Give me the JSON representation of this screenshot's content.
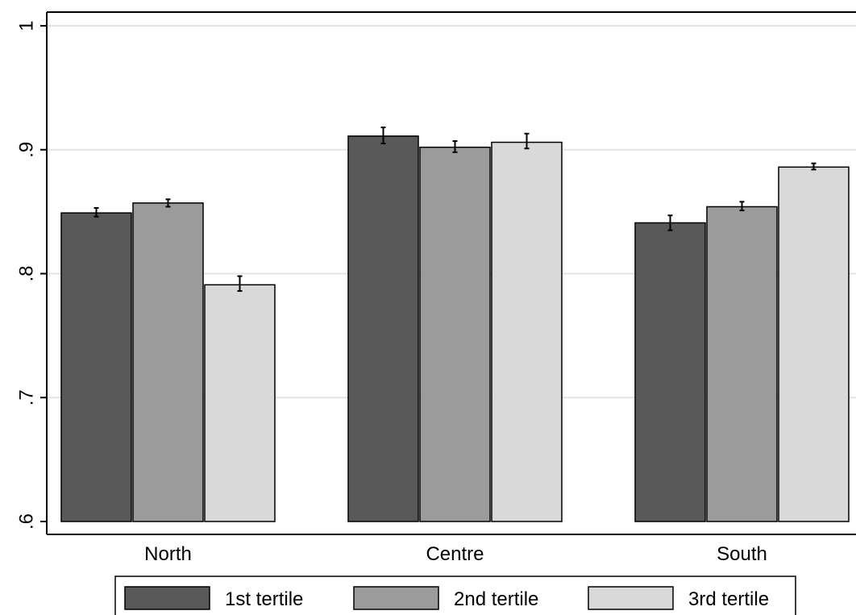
{
  "chart_data": {
    "type": "bar",
    "categories": [
      "North",
      "Centre",
      "South"
    ],
    "series": [
      {
        "name": "1st tertile",
        "color": "#595959",
        "values": [
          0.849,
          0.911,
          0.841
        ],
        "error_low": [
          0.846,
          0.905,
          0.835
        ],
        "error_high": [
          0.853,
          0.918,
          0.847
        ]
      },
      {
        "name": "2nd tertile",
        "color": "#9b9b9b",
        "values": [
          0.857,
          0.902,
          0.854
        ],
        "error_low": [
          0.854,
          0.898,
          0.851
        ],
        "error_high": [
          0.86,
          0.907,
          0.858
        ]
      },
      {
        "name": "3rd tertile",
        "color": "#d9d9d9",
        "values": [
          0.791,
          0.906,
          0.886
        ],
        "error_low": [
          0.786,
          0.901,
          0.884
        ],
        "error_high": [
          0.798,
          0.913,
          0.889
        ]
      }
    ],
    "ylim": [
      0.6,
      1.0
    ],
    "yticks": [
      0.6,
      0.7,
      0.8,
      0.9,
      1.0
    ],
    "ytick_labels": [
      ".6",
      ".7",
      ".8",
      ".9",
      "1"
    ],
    "grid": true,
    "legend": {
      "position": "bottom",
      "entries": [
        "1st tertile",
        "2nd tertile",
        "3rd tertile"
      ]
    },
    "title": "",
    "xlabel": "",
    "ylabel": ""
  }
}
